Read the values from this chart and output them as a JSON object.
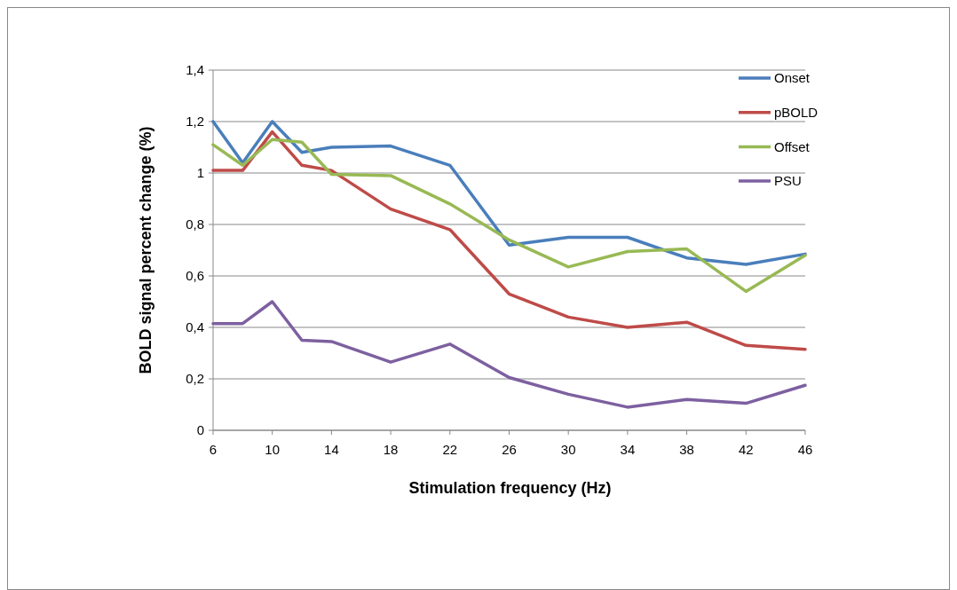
{
  "chart_data": {
    "type": "line",
    "xlabel": "Stimulation frequency (Hz)",
    "ylabel": "BOLD signal percent change (%)",
    "x": [
      6,
      8,
      10,
      12,
      14,
      18,
      22,
      26,
      30,
      34,
      38,
      42,
      46
    ],
    "xlim": [
      6,
      46
    ],
    "xticks": [
      6,
      10,
      14,
      18,
      22,
      26,
      30,
      34,
      38,
      42,
      46
    ],
    "ylim": [
      0,
      1.4
    ],
    "yticks": [
      0,
      {
        "value": 0.2,
        "label": "0,2"
      },
      {
        "value": 0.4,
        "label": "0,4"
      },
      {
        "value": 0.6,
        "label": "0,6"
      },
      {
        "value": 0.8,
        "label": "0,8"
      },
      1,
      {
        "value": 1.2,
        "label": "1,2"
      },
      {
        "value": 1.4,
        "label": "1,4"
      }
    ],
    "grid": "y",
    "legend": "right",
    "marker": "none",
    "line_style": "solid",
    "series": [
      {
        "name": "Onset",
        "color": "#4a7ebb",
        "values": [
          1.2,
          1.04,
          1.2,
          1.08,
          1.1,
          1.105,
          1.03,
          0.72,
          0.75,
          0.75,
          0.67,
          0.645,
          0.685
        ]
      },
      {
        "name": "pBOLD",
        "color": "#be4b48",
        "values": [
          1.01,
          1.01,
          1.16,
          1.03,
          1.01,
          0.86,
          0.78,
          0.53,
          0.44,
          0.4,
          0.42,
          0.33,
          0.315
        ]
      },
      {
        "name": "Offset",
        "color": "#98b954",
        "values": [
          1.11,
          1.03,
          1.13,
          1.12,
          0.995,
          0.99,
          0.88,
          0.74,
          0.635,
          0.695,
          0.705,
          0.54,
          0.68
        ]
      },
      {
        "name": "PSU",
        "color": "#7d60a0",
        "values": [
          0.415,
          0.415,
          0.5,
          0.35,
          0.345,
          0.265,
          0.335,
          0.205,
          0.14,
          0.09,
          0.12,
          0.105,
          0.175
        ]
      }
    ]
  }
}
